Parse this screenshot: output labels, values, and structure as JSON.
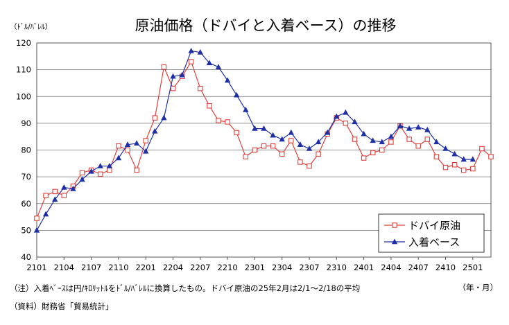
{
  "chart_data": {
    "type": "line",
    "title": "原油価格（ドバイと入着ベース）の推移",
    "ylabel": "（ﾄﾞﾙ/ﾊﾞﾚﾙ）",
    "xlabel": "（年・月）",
    "ylim": [
      40,
      120
    ],
    "yticks": [
      40,
      50,
      60,
      70,
      80,
      90,
      100,
      110,
      120
    ],
    "x_tick_labels": [
      "2101",
      "2104",
      "2107",
      "2110",
      "2201",
      "2204",
      "2207",
      "2210",
      "2301",
      "2304",
      "2307",
      "2310",
      "2401",
      "2404",
      "2407",
      "2410",
      "2501"
    ],
    "grid": true,
    "legend_position": "bottom-right",
    "series": [
      {
        "name": "ドバイ原油",
        "marker": "open-square",
        "color": "#e2403a",
        "values": [
          54.5,
          63,
          64.5,
          63,
          66.5,
          71.5,
          72.5,
          71,
          72.5,
          81.5,
          80,
          72.5,
          83.5,
          92,
          111,
          103,
          107.5,
          113,
          103,
          96.5,
          91,
          90.5,
          86.5,
          77.5,
          80,
          81.5,
          81.5,
          78.5,
          83.5,
          75.5,
          74,
          78.5,
          86,
          92,
          90,
          84,
          77,
          79,
          80,
          83,
          89,
          84,
          81.5,
          84,
          77.5,
          73.5,
          74.5,
          72.5,
          73,
          80.5,
          77.5
        ]
      },
      {
        "name": "入着ベース",
        "marker": "filled-triangle",
        "color": "#1f2fa8",
        "values": [
          50,
          56,
          61.5,
          66,
          65.5,
          69,
          72,
          74,
          74,
          77,
          82,
          82.5,
          79.5,
          87,
          92,
          107.5,
          108,
          117,
          116.5,
          112.5,
          111,
          106,
          100.5,
          95,
          88,
          88,
          85.5,
          84,
          86.5,
          82,
          80.5,
          83,
          86.5,
          92.5,
          94,
          90.5,
          86,
          83.5,
          83,
          85,
          89,
          88,
          88.5,
          87.5,
          83,
          80.5,
          78.5,
          76.5,
          76.5
        ]
      }
    ]
  },
  "notes": {
    "note": "（注）入着ﾍﾞｰｽは円/ｷﾛﾘｯﾄﾙをﾄﾞﾙ/ﾊﾞﾚﾙに換算したもの。ドバイ原油の25年2月は2/1～2/18の平均",
    "source": "（資料）財務省「貿易統計」"
  }
}
